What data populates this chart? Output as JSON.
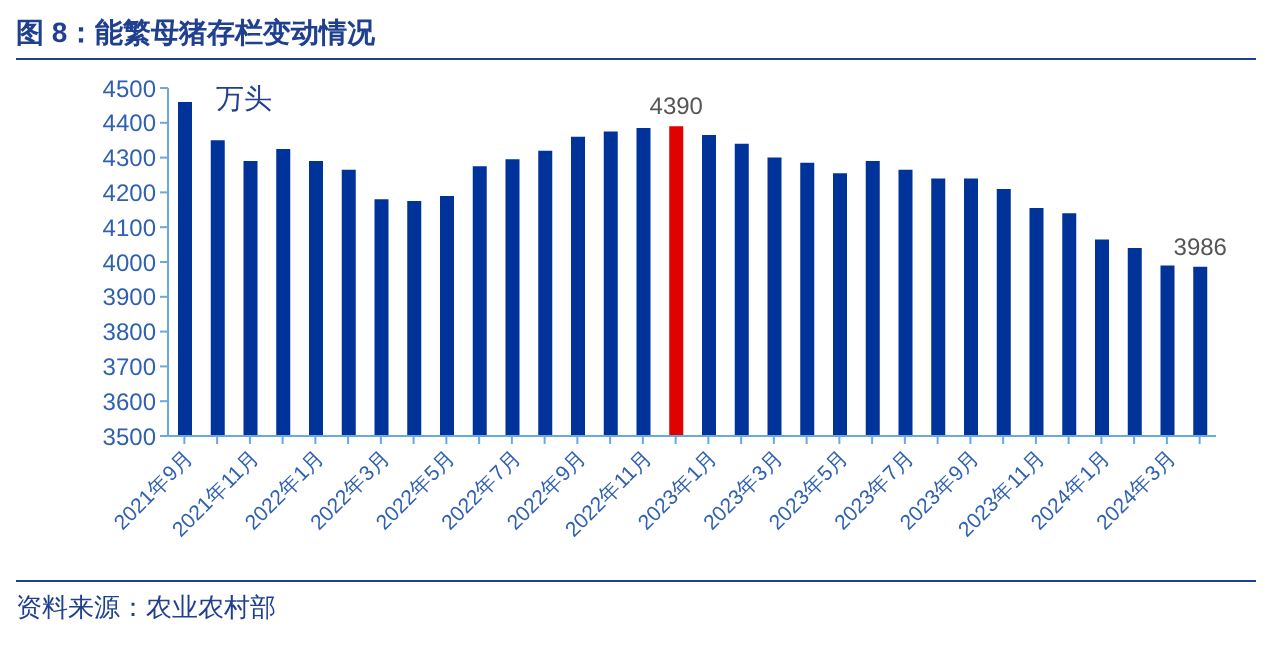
{
  "chart_data": {
    "type": "bar",
    "title": "图 8：能繁母猪存栏变动情况",
    "ylabel": "万头",
    "categories": [
      "2021年9月",
      null,
      "2021年11月",
      null,
      "2022年1月",
      null,
      "2022年3月",
      null,
      "2022年5月",
      null,
      "2022年7月",
      null,
      "2022年9月",
      null,
      "2022年11月",
      null,
      "2023年1月",
      null,
      "2023年3月",
      null,
      "2023年5月",
      null,
      "2023年7月",
      null,
      "2023年9月",
      null,
      "2023年11月",
      null,
      "2024年1月",
      null,
      "2024年3月",
      null
    ],
    "values": [
      4460,
      4350,
      4290,
      4325,
      4290,
      4265,
      4180,
      4175,
      4190,
      4275,
      4295,
      4320,
      4360,
      4375,
      4385,
      4390,
      4365,
      4340,
      4300,
      4285,
      4255,
      4290,
      4265,
      4240,
      4240,
      4210,
      4155,
      4140,
      4065,
      4040,
      3990,
      3986
    ],
    "colors": [
      "#003399",
      "#003399",
      "#003399",
      "#003399",
      "#003399",
      "#003399",
      "#003399",
      "#003399",
      "#003399",
      "#003399",
      "#003399",
      "#003399",
      "#003399",
      "#003399",
      "#003399",
      "#e00000",
      "#003399",
      "#003399",
      "#003399",
      "#003399",
      "#003399",
      "#003399",
      "#003399",
      "#003399",
      "#003399",
      "#003399",
      "#003399",
      "#003399",
      "#003399",
      "#003399",
      "#003399",
      "#003399"
    ],
    "value_labels": [
      null,
      null,
      null,
      null,
      null,
      null,
      null,
      null,
      null,
      null,
      null,
      null,
      null,
      null,
      null,
      "4390",
      null,
      null,
      null,
      null,
      null,
      null,
      null,
      null,
      null,
      null,
      null,
      null,
      null,
      null,
      null,
      "3986"
    ],
    "ylim": [
      3500,
      4500
    ],
    "yticks": [
      3500,
      3600,
      3700,
      3800,
      3900,
      4000,
      4100,
      4200,
      4300,
      4400,
      4500
    ],
    "grid": false,
    "annotations": [
      "资料来源：农业农村部"
    ]
  }
}
